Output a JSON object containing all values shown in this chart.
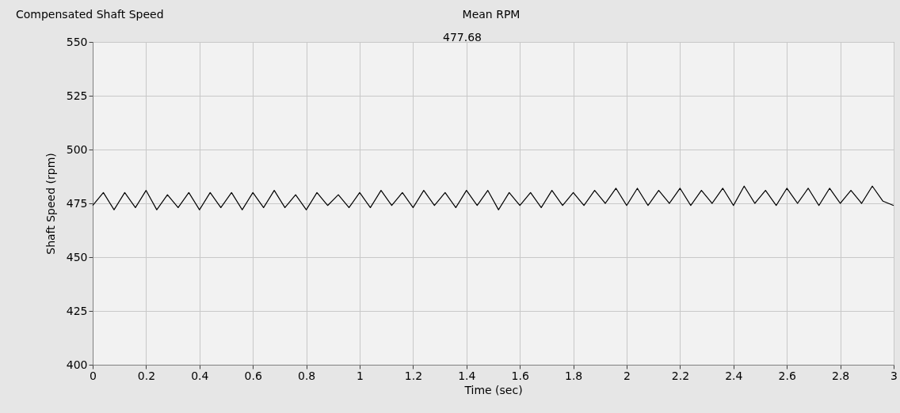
{
  "chart_data": {
    "type": "line",
    "title": "Compensated Shaft Speed",
    "xlabel": "Time (sec)",
    "ylabel": "Shaft Speed (rpm)",
    "annotations": [
      "Mean RPM",
      "477.68"
    ],
    "x": [
      0,
      0.04,
      0.08,
      0.12,
      0.16,
      0.2,
      0.24,
      0.28,
      0.32,
      0.36,
      0.4,
      0.44,
      0.48,
      0.52,
      0.56,
      0.6,
      0.64,
      0.68,
      0.72,
      0.76,
      0.8,
      0.84,
      0.88,
      0.92,
      0.96,
      1.0,
      1.04,
      1.08,
      1.12,
      1.16,
      1.2,
      1.24,
      1.28,
      1.32,
      1.36,
      1.4,
      1.44,
      1.48,
      1.52,
      1.56,
      1.6,
      1.64,
      1.68,
      1.72,
      1.76,
      1.8,
      1.84,
      1.88,
      1.92,
      1.96,
      2.0,
      2.04,
      2.08,
      2.12,
      2.16,
      2.2,
      2.24,
      2.28,
      2.32,
      2.36,
      2.4,
      2.44,
      2.48,
      2.52,
      2.56,
      2.6,
      2.64,
      2.68,
      2.72,
      2.76,
      2.8,
      2.84,
      2.88,
      2.92,
      2.96,
      3.0
    ],
    "series": [
      {
        "color": "#000000",
        "values": [
          474,
          480,
          472,
          480,
          473,
          481,
          472,
          479,
          473,
          480,
          472,
          480,
          473,
          480,
          472,
          480,
          473,
          481,
          473,
          479,
          472,
          480,
          474,
          479,
          473,
          480,
          473,
          481,
          474,
          480,
          473,
          481,
          474,
          480,
          473,
          481,
          474,
          481,
          472,
          480,
          474,
          480,
          473,
          481,
          474,
          480,
          474,
          481,
          475,
          482,
          474,
          482,
          474,
          481,
          475,
          482,
          474,
          481,
          475,
          482,
          474,
          483,
          475,
          481,
          474,
          482,
          475,
          482,
          474,
          482,
          475,
          481,
          475,
          483,
          476,
          474
        ]
      }
    ],
    "xlim": [
      0,
      3
    ],
    "xticks": [
      0,
      0.2,
      0.4,
      0.6,
      0.8,
      1,
      1.2,
      1.4,
      1.6,
      1.8,
      2,
      2.2,
      2.4,
      2.6,
      2.8,
      3
    ],
    "ylim": [
      400,
      550
    ],
    "yticks": [
      400,
      425,
      450,
      475,
      500,
      525,
      550
    ],
    "grid": true,
    "legend": false,
    "marker": "none",
    "line_style": "solid"
  }
}
